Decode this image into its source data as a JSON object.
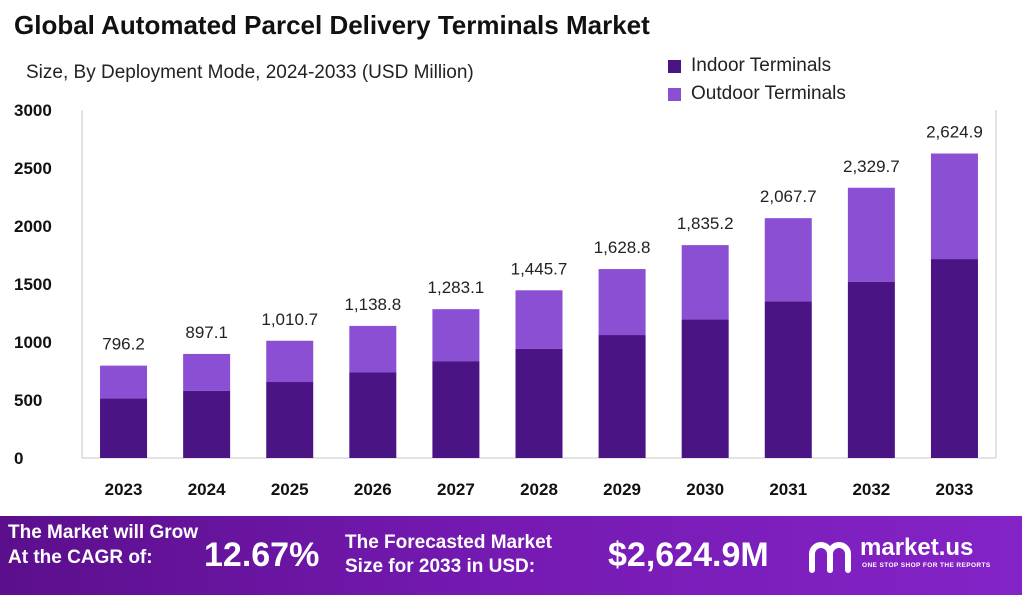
{
  "header": {
    "title": "Global Automated Parcel Delivery Terminals Market",
    "subtitle": "Size, By Deployment Mode, 2024-2033 (USD Million)"
  },
  "legend": {
    "items": [
      {
        "label": "Indoor Terminals",
        "color": "#4a1485"
      },
      {
        "label": "Outdoor Terminals",
        "color": "#8b4fd3"
      }
    ]
  },
  "chart_data": {
    "type": "bar",
    "stacked": true,
    "categories": [
      "2023",
      "2024",
      "2025",
      "2026",
      "2027",
      "2028",
      "2029",
      "2030",
      "2031",
      "2032",
      "2033"
    ],
    "series": [
      {
        "name": "Indoor Terminals",
        "color": "#4a1485",
        "values": [
          515,
          580,
          655,
          740,
          835,
          940,
          1060,
          1195,
          1350,
          1520,
          1715
        ]
      },
      {
        "name": "Outdoor Terminals",
        "color": "#8b4fd3",
        "values": [
          281.2,
          317.1,
          355.7,
          398.8,
          448.1,
          505.7,
          568.8,
          640.2,
          717.7,
          809.7,
          909.9
        ]
      }
    ],
    "totals": [
      796.2,
      897.1,
      1010.7,
      1138.8,
      1283.1,
      1445.7,
      1628.8,
      1835.2,
      2067.7,
      2329.7,
      2624.9
    ],
    "total_labels": [
      "796.2",
      "897.1",
      "1,010.7",
      "1,138.8",
      "1,283.1",
      "1,445.7",
      "1,628.8",
      "1,835.2",
      "2,067.7",
      "2,329.7",
      "2,624.9"
    ],
    "yticks": [
      0,
      500,
      1000,
      1500,
      2000,
      2500,
      3000
    ],
    "ylim": [
      0,
      3000
    ],
    "grid": false,
    "legend_position": "top-right"
  },
  "footer": {
    "grow_line1": "The Market will Grow",
    "grow_line2": "At the CAGR of:",
    "cagr_value": "12.67%",
    "forecast_line1": "The Forecasted Market",
    "forecast_line2": "Size for 2033 in USD:",
    "forecast_value": "$2,624.9M",
    "brand_name": "market.us",
    "brand_tagline": "ONE STOP SHOP FOR THE REPORTS"
  }
}
